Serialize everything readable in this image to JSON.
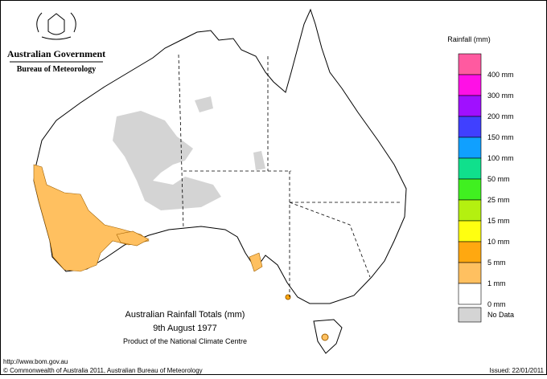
{
  "header": {
    "government": "Australian Government",
    "agency": "Bureau of Meteorology"
  },
  "title": {
    "line1": "Australian Rainfall Totals (mm)",
    "line2": "9th August 1977",
    "line3": "Product of the National Climate Centre"
  },
  "legend": {
    "title": "Rainfall (mm)",
    "colors": [
      "#ff5aa0",
      "#ff10e6",
      "#a010ff",
      "#4040ff",
      "#10a0ff",
      "#10e08c",
      "#40f020",
      "#b4f010",
      "#ffff10",
      "#ffa810",
      "#ffc060",
      "#ffffff"
    ],
    "labels": [
      "400 mm",
      "300 mm",
      "200 mm",
      "150 mm",
      "100 mm",
      "50 mm",
      "25 mm",
      "15 mm",
      "10 mm",
      "5 mm",
      "1 mm",
      "0 mm"
    ],
    "no_data": {
      "label": "No Data",
      "color": "#d4d4d4"
    }
  },
  "footer": {
    "url": "http://www.bom.gov.au",
    "copyright": "© Commonwealth of Australia 2011, Australian Bureau of Meteorology",
    "issued": "Issued: 22/01/2011"
  }
}
